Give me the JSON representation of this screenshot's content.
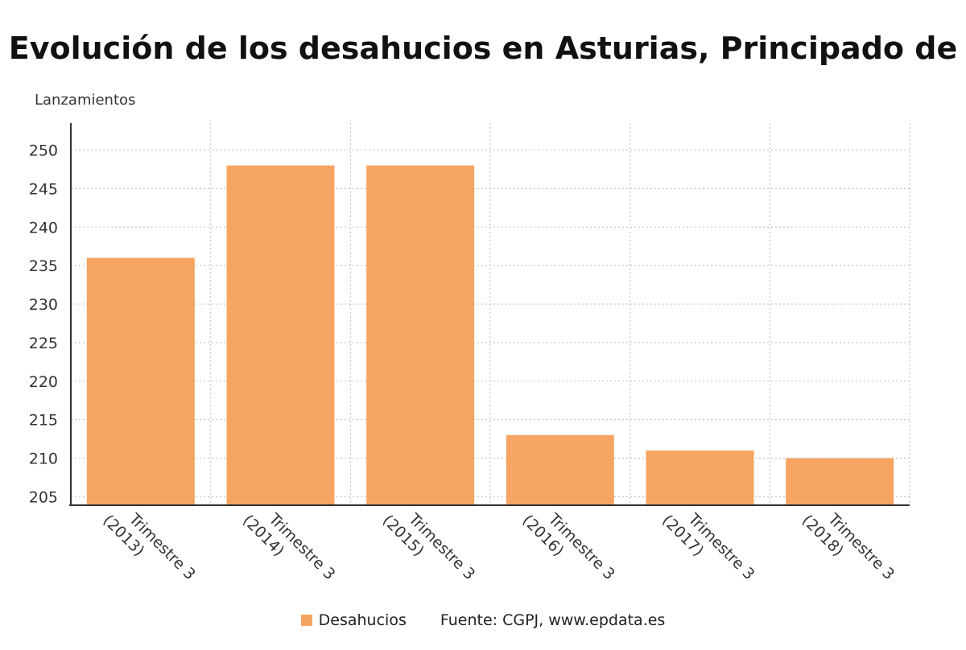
{
  "chart_data": {
    "type": "bar",
    "title": "Evolución de los desahucios en Asturias, Principado de",
    "ylabel": "Lanzamientos",
    "xlabel": "",
    "categories": [
      "Trimestre 3 (2013)",
      "Trimestre 3 (2014)",
      "Trimestre 3 (2015)",
      "Trimestre 3 (2016)",
      "Trimestre 3 (2017)",
      "Trimestre 3 (2018)"
    ],
    "series": [
      {
        "name": "Desahucios",
        "values": [
          236,
          248,
          248,
          213,
          211,
          210
        ],
        "color": "#f5a561"
      }
    ],
    "ylim": [
      204,
      253.5
    ],
    "yticks": [
      205,
      210,
      215,
      220,
      225,
      230,
      235,
      240,
      245,
      250
    ],
    "grid": true,
    "legend_position": "bottom",
    "source": "Fuente: CGPJ, www.epdata.es"
  }
}
